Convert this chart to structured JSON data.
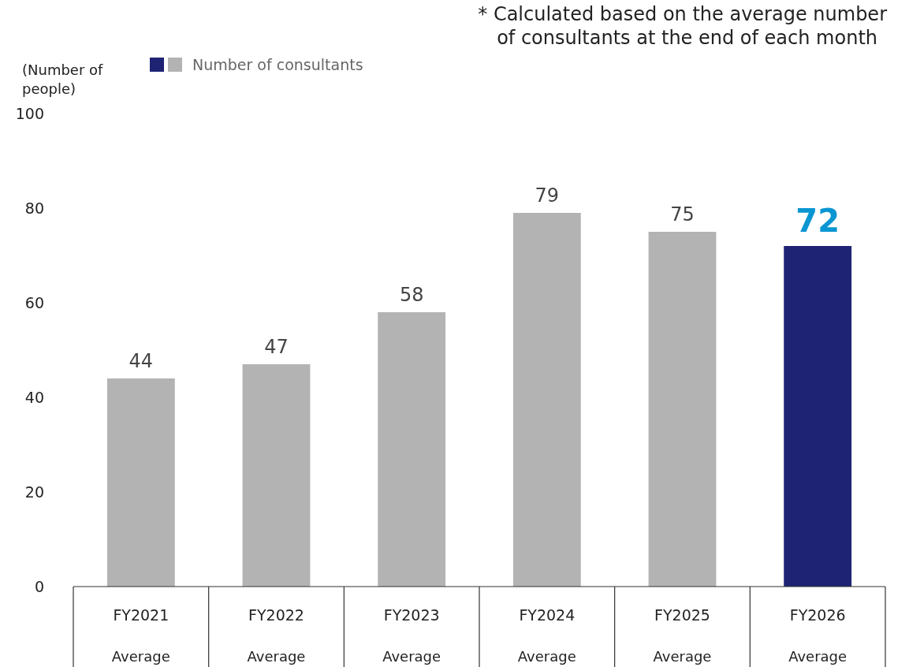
{
  "chart_data": {
    "type": "bar",
    "ylabel": "(Number of people)",
    "annotations": [
      "* Calculated based on the average number of consultants at the end of each month"
    ],
    "categories": [
      "FY2021\nAverage",
      "FY2022\nAverage",
      "FY2023\nAverage",
      "FY2024\nAverage",
      "FY2025\nAverage",
      "FY2026\nAverage"
    ],
    "series": [
      {
        "name": "Number of consultants",
        "colors": [
          "#b3b3b3",
          "#b3b3b3",
          "#b3b3b3",
          "#b3b3b3",
          "#b3b3b3",
          "#1f2374"
        ],
        "values": [
          44,
          47,
          58,
          79,
          75,
          72
        ]
      }
    ],
    "ylim": [
      0,
      100
    ],
    "yticks": [
      0,
      20,
      40,
      60,
      80,
      100
    ],
    "grid": false,
    "legend": "top left",
    "data_labels": true
  }
}
